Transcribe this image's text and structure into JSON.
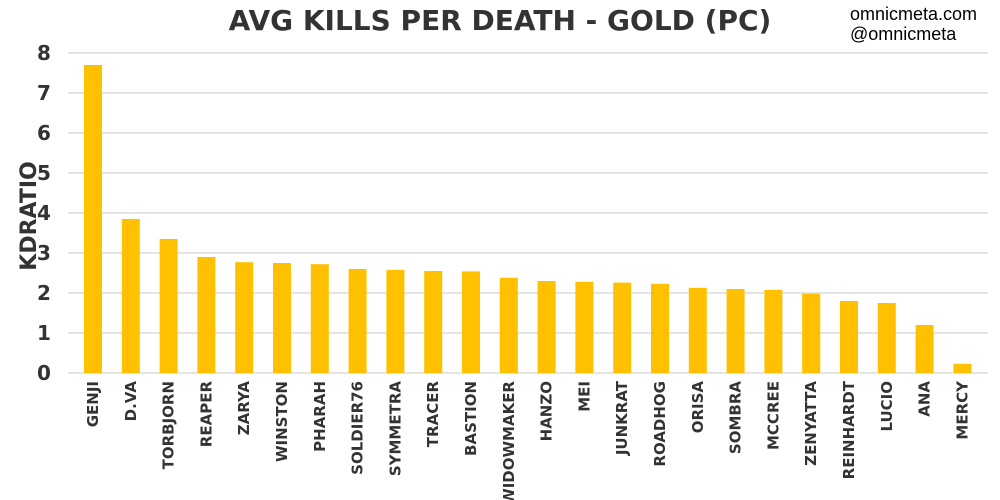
{
  "branding": {
    "site": "omnicmeta.com",
    "handle": "@omnicmeta"
  },
  "colors": {
    "bar": "#FFC000",
    "grid": "#C8C8C8",
    "text": "#333333"
  },
  "chart_data": {
    "type": "bar",
    "title": "AVG KILLS PER DEATH - GOLD (PC)",
    "xlabel": "",
    "ylabel": "KDRATIO",
    "ylim": [
      0,
      8
    ],
    "yticks": [
      0,
      1,
      2,
      3,
      4,
      5,
      6,
      7,
      8
    ],
    "grid": true,
    "legend": "none",
    "categories": [
      "GENJI",
      "D.VA",
      "TORBJORN",
      "REAPER",
      "ZARYA",
      "WINSTON",
      "PHARAH",
      "SOLDIER76",
      "SYMMETRA",
      "TRACER",
      "BASTION",
      "WIDOWMAKER",
      "HANZO",
      "MEI",
      "JUNKRAT",
      "ROADHOG",
      "ORISA",
      "SOMBRA",
      "MCCREE",
      "ZENYATTA",
      "REINHARDT",
      "LUCIO",
      "ANA",
      "MERCY"
    ],
    "values": [
      7.7,
      3.85,
      3.35,
      2.9,
      2.77,
      2.75,
      2.72,
      2.6,
      2.58,
      2.55,
      2.54,
      2.38,
      2.3,
      2.28,
      2.26,
      2.23,
      2.13,
      2.1,
      2.08,
      1.98,
      1.8,
      1.75,
      1.2,
      0.23
    ]
  }
}
